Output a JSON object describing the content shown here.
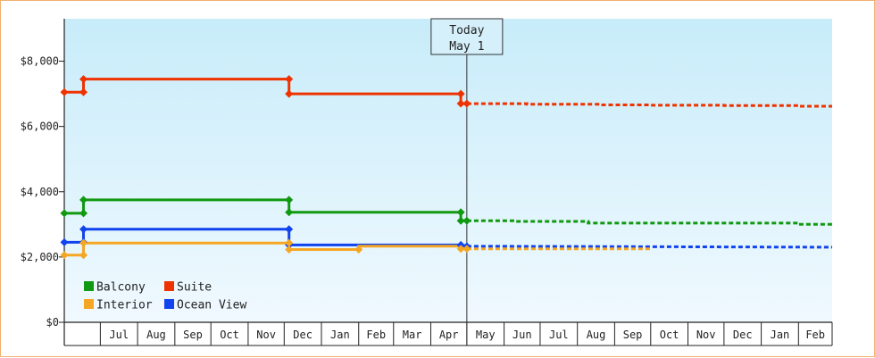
{
  "chart_data": {
    "type": "line",
    "title": "",
    "xlabel": "",
    "ylabel": "",
    "y_ticks": [
      "$0",
      "$2,000",
      "$4,000",
      "$6,000",
      "$8,000"
    ],
    "ylim": [
      0,
      9300
    ],
    "x_range": [
      "2023-06-01",
      "2025-03-01"
    ],
    "month_labels": [
      "Jul",
      "Aug",
      "Sep",
      "Oct",
      "Nov",
      "Dec",
      "Jan",
      "Feb",
      "Mar",
      "Apr",
      "May",
      "Jun",
      "Jul",
      "Aug",
      "Sep",
      "Oct",
      "Nov",
      "Dec",
      "Jan",
      "Feb"
    ],
    "today": {
      "label": "Today",
      "date_label": "May 1",
      "date": "2024-05-01"
    },
    "legend_position": "bottom-left",
    "grid": false,
    "series": [
      {
        "name": "Suite",
        "color": "#ee3300",
        "history": [
          [
            "2023-06-01",
            7050
          ],
          [
            "2023-06-17",
            7050
          ],
          [
            "2023-06-17",
            7450
          ],
          [
            "2023-12-05",
            7450
          ],
          [
            "2023-12-05",
            7000
          ],
          [
            "2024-04-26",
            7000
          ],
          [
            "2024-04-26",
            6700
          ],
          [
            "2024-05-01",
            6700
          ]
        ],
        "markers": [
          [
            "2023-06-01",
            7050
          ],
          [
            "2023-06-17",
            7050
          ],
          [
            "2023-06-17",
            7450
          ],
          [
            "2023-12-05",
            7450
          ],
          [
            "2023-12-05",
            7000
          ],
          [
            "2024-04-26",
            7000
          ],
          [
            "2024-04-26",
            6700
          ],
          [
            "2024-05-01",
            6700
          ]
        ],
        "forecast": [
          [
            "2024-05-01",
            6700
          ],
          [
            "2024-06-20",
            6700
          ],
          [
            "2024-06-20",
            6680
          ],
          [
            "2024-08-20",
            6680
          ],
          [
            "2024-08-20",
            6660
          ],
          [
            "2024-10-01",
            6660
          ],
          [
            "2024-10-01",
            6650
          ],
          [
            "2024-12-01",
            6650
          ],
          [
            "2024-12-01",
            6640
          ],
          [
            "2025-02-01",
            6640
          ],
          [
            "2025-02-01",
            6620
          ],
          [
            "2025-03-01",
            6620
          ]
        ]
      },
      {
        "name": "Balcony",
        "color": "#119911",
        "history": [
          [
            "2023-06-01",
            3340
          ],
          [
            "2023-06-17",
            3340
          ],
          [
            "2023-06-17",
            3750
          ],
          [
            "2023-12-05",
            3750
          ],
          [
            "2023-12-05",
            3370
          ],
          [
            "2024-04-26",
            3370
          ],
          [
            "2024-04-26",
            3110
          ],
          [
            "2024-05-01",
            3110
          ]
        ],
        "markers": [
          [
            "2023-06-01",
            3340
          ],
          [
            "2023-06-17",
            3340
          ],
          [
            "2023-06-17",
            3750
          ],
          [
            "2023-12-05",
            3750
          ],
          [
            "2023-12-05",
            3370
          ],
          [
            "2024-04-26",
            3370
          ],
          [
            "2024-04-26",
            3110
          ],
          [
            "2024-05-01",
            3110
          ]
        ],
        "forecast": [
          [
            "2024-05-01",
            3110
          ],
          [
            "2024-06-10",
            3110
          ],
          [
            "2024-06-10",
            3090
          ],
          [
            "2024-08-10",
            3090
          ],
          [
            "2024-08-10",
            3040
          ],
          [
            "2025-02-01",
            3040
          ],
          [
            "2025-02-01",
            3000
          ],
          [
            "2025-03-01",
            3000
          ]
        ]
      },
      {
        "name": "Ocean View",
        "color": "#1144ee",
        "history": [
          [
            "2023-06-01",
            2450
          ],
          [
            "2023-06-17",
            2450
          ],
          [
            "2023-06-17",
            2850
          ],
          [
            "2023-12-05",
            2850
          ],
          [
            "2023-12-05",
            2370
          ],
          [
            "2024-04-26",
            2370
          ],
          [
            "2024-05-01",
            2330
          ]
        ],
        "markers": [
          [
            "2023-06-01",
            2450
          ],
          [
            "2023-06-17",
            2450
          ],
          [
            "2023-06-17",
            2850
          ],
          [
            "2023-12-05",
            2850
          ],
          [
            "2023-12-05",
            2370
          ],
          [
            "2024-04-26",
            2370
          ],
          [
            "2024-05-01",
            2330
          ]
        ],
        "forecast": [
          [
            "2024-05-01",
            2330
          ],
          [
            "2025-03-01",
            2300
          ]
        ]
      },
      {
        "name": "Interior",
        "color": "#f5a623",
        "history": [
          [
            "2023-06-01",
            2060
          ],
          [
            "2023-06-17",
            2060
          ],
          [
            "2023-06-17",
            2430
          ],
          [
            "2023-12-05",
            2430
          ],
          [
            "2023-12-05",
            2230
          ],
          [
            "2024-02-01",
            2230
          ],
          [
            "2024-02-01",
            2330
          ],
          [
            "2024-04-26",
            2330
          ],
          [
            "2024-04-26",
            2250
          ],
          [
            "2024-05-01",
            2250
          ]
        ],
        "markers": [
          [
            "2023-06-01",
            2060
          ],
          [
            "2023-06-17",
            2060
          ],
          [
            "2023-06-17",
            2430
          ],
          [
            "2023-12-05",
            2430
          ],
          [
            "2023-12-05",
            2230
          ],
          [
            "2024-02-01",
            2230
          ],
          [
            "2024-04-26",
            2250
          ],
          [
            "2024-05-01",
            2250
          ]
        ],
        "forecast": [
          [
            "2024-05-01",
            2250
          ],
          [
            "2024-10-01",
            2250
          ]
        ]
      }
    ],
    "legend": [
      {
        "name": "Balcony",
        "color": "#119911"
      },
      {
        "name": "Suite",
        "color": "#ee3300"
      },
      {
        "name": "Interior",
        "color": "#f5a623"
      },
      {
        "name": "Ocean View",
        "color": "#1144ee"
      }
    ]
  }
}
